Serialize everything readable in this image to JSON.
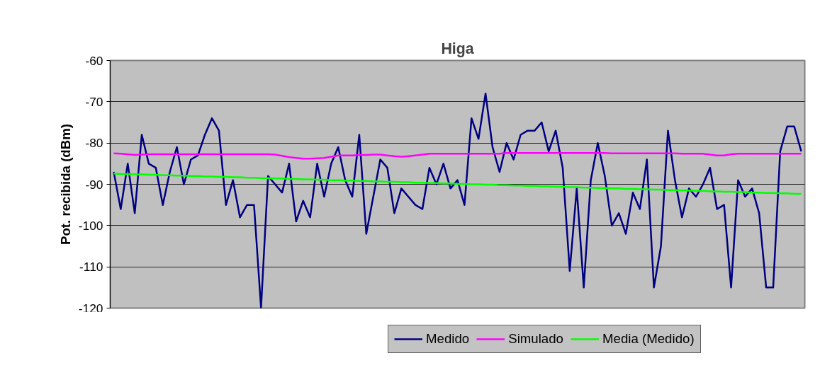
{
  "chart_data": {
    "type": "line",
    "title": "Higa",
    "ylabel": "Pot. recibida (dBm)",
    "categories": [
      null,
      null,
      null,
      null,
      null,
      null,
      null,
      null,
      null,
      null,
      null,
      null,
      null,
      null,
      null,
      null,
      null,
      null,
      null,
      null,
      null,
      null,
      null,
      null,
      null,
      null,
      null,
      null,
      null,
      null,
      null,
      null,
      null,
      null,
      null,
      null,
      null,
      null,
      null,
      null,
      null,
      null,
      null,
      null,
      null,
      null,
      null,
      null,
      null,
      null,
      null,
      null,
      null,
      null,
      null,
      null,
      null,
      null,
      null,
      null,
      null,
      null,
      null,
      null,
      null,
      null,
      null,
      null,
      null,
      null,
      null,
      null,
      null,
      null,
      null,
      null,
      null,
      null,
      null,
      null,
      null,
      null,
      null,
      null,
      null,
      null,
      null,
      null,
      null,
      null,
      null,
      null,
      null,
      null,
      null,
      null,
      null,
      null,
      null
    ],
    "ylim": [
      -120,
      -60
    ],
    "yticks": [
      -120,
      -110,
      -100,
      -90,
      -80,
      -70,
      -60
    ],
    "grid": "y",
    "legend": "bottom",
    "series": [
      {
        "name": "Medido",
        "color": "#000080",
        "values": [
          -87,
          -96,
          -85,
          -97,
          -78,
          -85,
          -86,
          -95,
          -87,
          -81,
          -90,
          -84,
          -83,
          -78,
          -74,
          -77,
          -95,
          -89,
          -98,
          -95,
          -95,
          -120,
          -88,
          -90,
          -92,
          -85,
          -99,
          -94,
          -98,
          -85,
          -93,
          -85,
          -81,
          -89,
          -93,
          -78,
          -102,
          -93,
          -84,
          -86,
          -97,
          -91,
          -93,
          -95,
          -96,
          -86,
          -90,
          -85,
          -91,
          -89,
          -95,
          -74,
          -79,
          -68,
          -81,
          -87,
          -80,
          -84,
          -78,
          -77,
          -77,
          -75,
          -82,
          -77,
          -86,
          -111,
          -91,
          -115,
          -89,
          -80,
          -88,
          -100,
          -97,
          -102,
          -92,
          -96,
          -84,
          -115,
          -105,
          -77,
          -89,
          -98,
          -91,
          -93,
          -90,
          -86,
          -96,
          -95,
          -115,
          -89,
          -93,
          -91,
          -97,
          -115,
          -115,
          -82,
          -76,
          -76,
          -82
        ]
      },
      {
        "name": "Simulado",
        "color": "#ff00ff",
        "values": [
          -82.5,
          -82.6,
          -82.7,
          -82.9,
          -82.8,
          -82.7,
          -82.7,
          -82.7,
          -82.7,
          -82.7,
          -82.7,
          -82.7,
          -82.7,
          -82.7,
          -82.7,
          -82.7,
          -82.7,
          -82.7,
          -82.7,
          -82.7,
          -82.7,
          -82.7,
          -82.7,
          -82.8,
          -83.1,
          -83.4,
          -83.6,
          -83.8,
          -83.8,
          -83.7,
          -83.6,
          -83.3,
          -83.0,
          -83.0,
          -83.0,
          -82.9,
          -82.9,
          -82.8,
          -82.8,
          -83.0,
          -83.2,
          -83.3,
          -83.2,
          -83.0,
          -82.8,
          -82.6,
          -82.6,
          -82.6,
          -82.6,
          -82.6,
          -82.6,
          -82.6,
          -82.6,
          -82.6,
          -82.6,
          -82.6,
          -82.4,
          -82.4,
          -82.4,
          -82.4,
          -82.4,
          -82.4,
          -82.4,
          -82.4,
          -82.4,
          -82.4,
          -82.4,
          -82.4,
          -82.4,
          -82.4,
          -82.4,
          -82.5,
          -82.5,
          -82.5,
          -82.5,
          -82.5,
          -82.5,
          -82.5,
          -82.5,
          -82.5,
          -82.5,
          -82.6,
          -82.6,
          -82.6,
          -82.6,
          -82.8,
          -83.0,
          -83.0,
          -82.7,
          -82.6,
          -82.6,
          -82.6,
          -82.6,
          -82.6,
          -82.6,
          -82.6,
          -82.6,
          -82.6,
          -82.6
        ]
      },
      {
        "name": "Media (Medido)",
        "color": "#00ff00",
        "values": [
          -87.4,
          -87.5,
          -87.5,
          -87.6,
          -87.6,
          -87.7,
          -87.7,
          -87.8,
          -87.8,
          -87.9,
          -87.9,
          -88.0,
          -88.0,
          -88.1,
          -88.1,
          -88.2,
          -88.2,
          -88.3,
          -88.3,
          -88.4,
          -88.4,
          -88.5,
          -88.5,
          -88.6,
          -88.6,
          -88.7,
          -88.7,
          -88.8,
          -88.8,
          -88.9,
          -88.9,
          -89.0,
          -89.0,
          -89.1,
          -89.1,
          -89.2,
          -89.2,
          -89.3,
          -89.3,
          -89.4,
          -89.4,
          -89.5,
          -89.5,
          -89.6,
          -89.6,
          -89.7,
          -89.7,
          -89.8,
          -89.8,
          -89.9,
          -89.9,
          -90.0,
          -90.0,
          -90.1,
          -90.1,
          -90.2,
          -90.2,
          -90.3,
          -90.3,
          -90.4,
          -90.4,
          -90.5,
          -90.5,
          -90.6,
          -90.6,
          -90.7,
          -90.7,
          -90.8,
          -90.8,
          -90.9,
          -90.9,
          -91.0,
          -91.0,
          -91.1,
          -91.1,
          -91.2,
          -91.2,
          -91.3,
          -91.3,
          -91.4,
          -91.4,
          -91.5,
          -91.5,
          -91.6,
          -91.6,
          -91.7,
          -91.7,
          -91.8,
          -91.8,
          -91.9,
          -91.9,
          -92.0,
          -92.0,
          -92.1,
          -92.1,
          -92.2,
          -92.2,
          -92.3,
          -92.3
        ]
      }
    ]
  }
}
